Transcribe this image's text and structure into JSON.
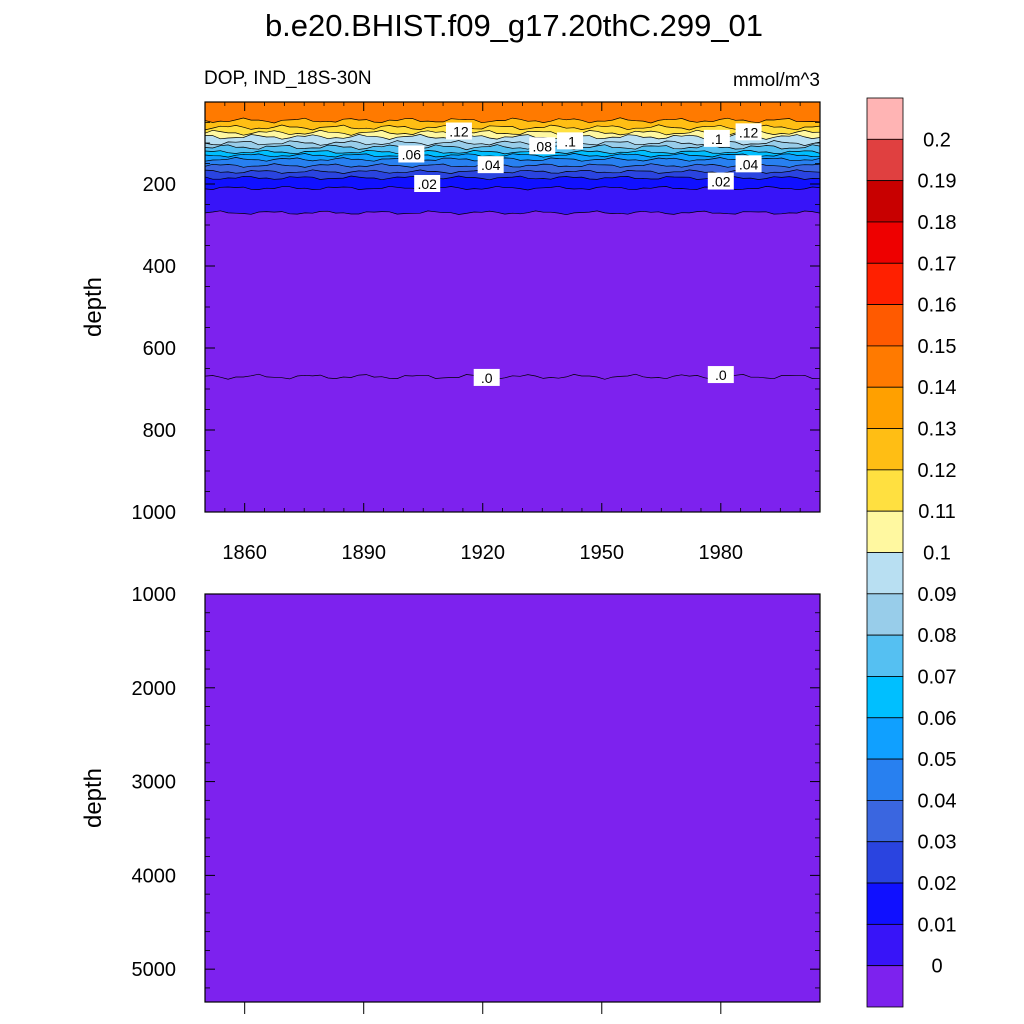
{
  "title": "b.e20.BHIST.f09_g17.20thC.299_01",
  "chart_data": {
    "type": "contour",
    "variable_label": "DOP, IND_18S-30N",
    "units": "mmol/m^3",
    "x_ticks": [
      "1860",
      "1890",
      "1920",
      "1950",
      "1980"
    ],
    "x_tick_values": [
      1860,
      1890,
      1920,
      1950,
      1980
    ],
    "xlim": [
      1850,
      2005
    ],
    "upper_panel": {
      "ylabel": "depth",
      "ylim": [
        0,
        1000
      ],
      "y_ticks": [
        "200",
        "400",
        "600",
        "800",
        "1000"
      ],
      "y_tick_values": [
        200,
        400,
        600,
        800,
        1000
      ],
      "contour_labels": [
        {
          "text": ".12",
          "x": 1914,
          "y": 72
        },
        {
          "text": ".1",
          "x": 1942,
          "y": 96
        },
        {
          "text": ".08",
          "x": 1935,
          "y": 108
        },
        {
          "text": ".06",
          "x": 1902,
          "y": 128
        },
        {
          "text": ".04",
          "x": 1922,
          "y": 154
        },
        {
          "text": ".02",
          "x": 1906,
          "y": 200
        },
        {
          "text": ".12",
          "x": 1987,
          "y": 74
        },
        {
          "text": ".1",
          "x": 1979,
          "y": 90
        },
        {
          "text": ".04",
          "x": 1987,
          "y": 152
        },
        {
          "text": ".02",
          "x": 1980,
          "y": 194
        },
        {
          "text": ".0",
          "x": 1921,
          "y": 673
        },
        {
          "text": ".0",
          "x": 1980,
          "y": 666
        }
      ],
      "approx_layer_bottom_depths": {
        "0.13-0.14": 45,
        "0.12-0.13": 62,
        "0.11-0.12": 75,
        "0.1-0.11": 85,
        "0.09-0.1": 100,
        "0.08-0.09": 110,
        "0.07-0.08": 122,
        "0.06-0.07": 130,
        "0.05-0.06": 140,
        "0.04-0.05": 155,
        "0.03-0.04": 170,
        "0.02-0.03": 185,
        "0.01-0.02": 210,
        "0-0.01": 270,
        "below 0": 670
      }
    },
    "lower_panel": {
      "ylabel": "depth",
      "ylim": [
        1000,
        5350
      ],
      "y_ticks": [
        "1000",
        "2000",
        "3000",
        "4000",
        "5000"
      ],
      "y_tick_values": [
        1000,
        2000,
        3000,
        4000,
        5000
      ],
      "fill_level": "below 0"
    },
    "colorbar": {
      "labels": [
        "0.2",
        "0.19",
        "0.18",
        "0.17",
        "0.16",
        "0.15",
        "0.14",
        "0.13",
        "0.12",
        "0.11",
        "0.1",
        "0.09",
        "0.08",
        "0.07",
        "0.06",
        "0.05",
        "0.04",
        "0.03",
        "0.02",
        "0.01",
        "0"
      ],
      "colors_top_to_bottom": [
        "#ffb4b4",
        "#e04040",
        "#c80000",
        "#ee0000",
        "#ff2000",
        "#ff5a00",
        "#ff7a00",
        "#ffa000",
        "#ffbe14",
        "#ffe040",
        "#fff8a0",
        "#b8dff2",
        "#98cdea",
        "#55c0f2",
        "#00bfff",
        "#10a0ff",
        "#2880f0",
        "#3a66e0",
        "#2a44e0",
        "#1010ff",
        "#3814f8",
        "#7d22ee"
      ]
    }
  }
}
